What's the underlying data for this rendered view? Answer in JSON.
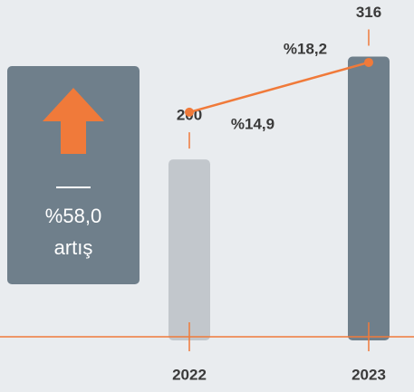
{
  "chart_data": {
    "type": "bar",
    "categories": [
      "2022",
      "2023"
    ],
    "series": [
      {
        "values": [
          200,
          316
        ],
        "colors": [
          "#c2c7cc",
          "#6f7f8b"
        ]
      },
      {
        "type": "line",
        "axis": "y2",
        "color": "#f07a3a",
        "values": [
          14.9,
          18.2
        ],
        "value_labels": [
          "%14,9",
          "%18,2"
        ]
      }
    ],
    "ylim": [
      0,
      340
    ],
    "y2lim": [
      0,
      20
    ],
    "annotation": {
      "value": "%58,0",
      "label": "artış",
      "color": "#f07a3a",
      "box_color": "#6f7f8b"
    }
  }
}
